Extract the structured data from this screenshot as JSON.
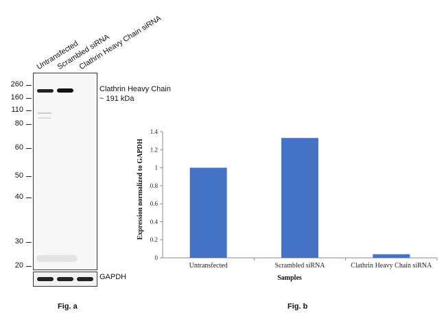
{
  "blot": {
    "lanes": [
      "Untransfected",
      "Scrambled siRNA",
      "Clathrin Heavy Chain siRNA"
    ],
    "mw_markers": [
      "260",
      "160",
      "110",
      "80",
      "60",
      "50",
      "40",
      "30",
      "20"
    ],
    "band_label_line1": "Clathrin Heavy Chain",
    "band_label_line2": "~ 191 kDa",
    "loading_control": "GAPDH",
    "fig_label": "Fig. a"
  },
  "chart_data": {
    "type": "bar",
    "categories": [
      "Untransfected",
      "Scrambled siRNA",
      "Clathrin Heavy Chain siRNA"
    ],
    "values": [
      1.0,
      1.33,
      0.04
    ],
    "xlabel": "Samples",
    "ylabel": "Expression normalized to GAPDH",
    "ylim": [
      0,
      1.4
    ],
    "yticks": [
      "0",
      "0.2",
      "0.4",
      "0.6",
      "0.8",
      "1",
      "1.2",
      "1.4"
    ],
    "bar_color": "#4472C4",
    "fig_label": "Fig. b"
  }
}
